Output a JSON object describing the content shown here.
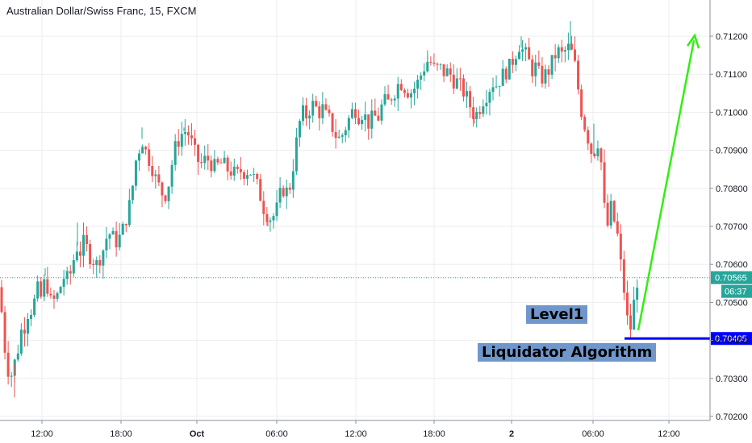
{
  "chart_data": {
    "type": "candlestick",
    "title": "Australian Dollar/Swiss Franc, 15, FXCM",
    "x_ticks": [
      "12:00",
      "18:00",
      "Oct",
      "06:00",
      "12:00",
      "18:00",
      "2",
      "06:00",
      "12:00"
    ],
    "y_ticks": [
      0.712,
      0.711,
      0.71,
      0.709,
      0.708,
      0.707,
      0.706,
      0.705,
      0.704,
      0.703,
      0.702
    ],
    "y_tick_labels": [
      "0.71200",
      "0.71100",
      "0.71000",
      "0.70900",
      "0.70800",
      "0.70700",
      "0.70600",
      "0.70500",
      "0.70400",
      "0.70300",
      "0.70200"
    ],
    "ylim": [
      0.70184,
      0.71277
    ],
    "current_price": "0.70565",
    "countdown": "06:37",
    "level_price": "0.70405",
    "annotations": [
      "Level1",
      "Liquidator Algorithm"
    ],
    "colors": {
      "up": "#26a69a",
      "down": "#ef5350",
      "level": "#0000ff",
      "arrow": "#33ee11",
      "price_label": "#26a69a",
      "level_label": "#0000ff"
    },
    "path": [
      [
        0,
        0.7054
      ],
      [
        4,
        0.7041
      ],
      [
        8,
        0.7035
      ],
      [
        12,
        0.703
      ],
      [
        16,
        0.7032
      ],
      [
        20,
        0.7036
      ],
      [
        24,
        0.7039
      ],
      [
        28,
        0.7045
      ],
      [
        32,
        0.7043
      ],
      [
        36,
        0.705
      ],
      [
        40,
        0.7047
      ],
      [
        44,
        0.7052
      ],
      [
        48,
        0.7054
      ],
      [
        52,
        0.705
      ],
      [
        56,
        0.7057
      ],
      [
        60,
        0.7053
      ],
      [
        64,
        0.7049
      ],
      [
        68,
        0.7051
      ],
      [
        72,
        0.7052
      ],
      [
        76,
        0.7055
      ],
      [
        80,
        0.7057
      ],
      [
        84,
        0.7056
      ],
      [
        88,
        0.7058
      ],
      [
        92,
        0.7062
      ],
      [
        96,
        0.7065
      ],
      [
        100,
        0.7063
      ],
      [
        104,
        0.7066
      ],
      [
        108,
        0.7064
      ],
      [
        112,
        0.7062
      ],
      [
        116,
        0.7061
      ],
      [
        120,
        0.706
      ],
      [
        124,
        0.7062
      ],
      [
        128,
        0.7064
      ],
      [
        132,
        0.7067
      ],
      [
        136,
        0.7068
      ],
      [
        140,
        0.7067
      ],
      [
        144,
        0.7066
      ],
      [
        148,
        0.7067
      ],
      [
        152,
        0.7069
      ],
      [
        156,
        0.7072
      ],
      [
        160,
        0.7075
      ],
      [
        164,
        0.708
      ],
      [
        168,
        0.7087
      ],
      [
        172,
        0.709
      ],
      [
        176,
        0.7093
      ],
      [
        180,
        0.709
      ],
      [
        184,
        0.7088
      ],
      [
        188,
        0.7086
      ],
      [
        192,
        0.7083
      ],
      [
        196,
        0.7081
      ],
      [
        200,
        0.7079
      ],
      [
        204,
        0.7078
      ],
      [
        208,
        0.708
      ],
      [
        212,
        0.7085
      ],
      [
        216,
        0.709
      ],
      [
        220,
        0.7092
      ],
      [
        224,
        0.7094
      ],
      [
        228,
        0.7095
      ],
      [
        232,
        0.7095
      ],
      [
        236,
        0.7093
      ],
      [
        240,
        0.709
      ],
      [
        244,
        0.7088
      ],
      [
        248,
        0.7086
      ],
      [
        252,
        0.7087
      ],
      [
        256,
        0.7088
      ],
      [
        260,
        0.7087
      ],
      [
        264,
        0.7086
      ],
      [
        268,
        0.7085
      ],
      [
        272,
        0.7087
      ],
      [
        276,
        0.7086
      ],
      [
        280,
        0.7086
      ],
      [
        284,
        0.7084
      ],
      [
        288,
        0.7085
      ],
      [
        292,
        0.7083
      ],
      [
        296,
        0.7084
      ],
      [
        300,
        0.7085
      ],
      [
        304,
        0.7084
      ],
      [
        308,
        0.7085
      ],
      [
        312,
        0.7084
      ],
      [
        316,
        0.7082
      ],
      [
        320,
        0.708
      ],
      [
        324,
        0.7077
      ],
      [
        328,
        0.7074
      ],
      [
        332,
        0.7073
      ],
      [
        336,
        0.7072
      ],
      [
        340,
        0.7073
      ],
      [
        344,
        0.7075
      ],
      [
        348,
        0.7079
      ],
      [
        352,
        0.708
      ],
      [
        356,
        0.7079
      ],
      [
        360,
        0.7081
      ],
      [
        364,
        0.7087
      ],
      [
        368,
        0.7093
      ],
      [
        372,
        0.7098
      ],
      [
        376,
        0.71
      ],
      [
        380,
        0.7099
      ],
      [
        384,
        0.7101
      ],
      [
        388,
        0.7102
      ],
      [
        392,
        0.7101
      ],
      [
        396,
        0.71
      ],
      [
        400,
        0.7101
      ],
      [
        404,
        0.7099
      ],
      [
        408,
        0.7098
      ],
      [
        412,
        0.7096
      ],
      [
        416,
        0.7094
      ],
      [
        420,
        0.7093
      ],
      [
        424,
        0.7094
      ],
      [
        428,
        0.7096
      ],
      [
        432,
        0.7098
      ],
      [
        436,
        0.71
      ],
      [
        440,
        0.7101
      ],
      [
        444,
        0.7099
      ],
      [
        448,
        0.71
      ],
      [
        452,
        0.7099
      ],
      [
        456,
        0.7097
      ],
      [
        460,
        0.7098
      ],
      [
        464,
        0.7099
      ],
      [
        468,
        0.7098
      ],
      [
        472,
        0.7101
      ],
      [
        476,
        0.7103
      ],
      [
        480,
        0.7102
      ],
      [
        484,
        0.7104
      ],
      [
        488,
        0.7105
      ],
      [
        492,
        0.7107
      ],
      [
        496,
        0.7108
      ],
      [
        500,
        0.7107
      ],
      [
        504,
        0.7106
      ],
      [
        508,
        0.7105
      ],
      [
        512,
        0.7106
      ],
      [
        516,
        0.7107
      ],
      [
        520,
        0.7109
      ],
      [
        524,
        0.7111
      ],
      [
        528,
        0.7113
      ],
      [
        532,
        0.7114
      ],
      [
        536,
        0.7112
      ],
      [
        540,
        0.7111
      ],
      [
        544,
        0.7112
      ],
      [
        548,
        0.7111
      ],
      [
        552,
        0.711
      ],
      [
        556,
        0.7111
      ],
      [
        560,
        0.7109
      ],
      [
        564,
        0.7108
      ],
      [
        568,
        0.7108
      ],
      [
        572,
        0.7106
      ],
      [
        576,
        0.7105
      ],
      [
        580,
        0.7103
      ],
      [
        584,
        0.7101
      ],
      [
        588,
        0.7099
      ],
      [
        592,
        0.71
      ],
      [
        596,
        0.7102
      ],
      [
        600,
        0.7104
      ],
      [
        604,
        0.7105
      ],
      [
        608,
        0.7107
      ],
      [
        612,
        0.7108
      ],
      [
        616,
        0.7107
      ],
      [
        620,
        0.7109
      ],
      [
        624,
        0.711
      ],
      [
        628,
        0.7111
      ],
      [
        632,
        0.7112
      ],
      [
        636,
        0.7114
      ],
      [
        640,
        0.7116
      ],
      [
        644,
        0.7118
      ],
      [
        648,
        0.7116
      ],
      [
        652,
        0.7115
      ],
      [
        656,
        0.7113
      ],
      [
        660,
        0.7111
      ],
      [
        664,
        0.7112
      ],
      [
        668,
        0.711
      ],
      [
        672,
        0.7109
      ],
      [
        676,
        0.711
      ],
      [
        680,
        0.7111
      ],
      [
        684,
        0.7113
      ],
      [
        688,
        0.7115
      ],
      [
        692,
        0.7116
      ],
      [
        696,
        0.7115
      ],
      [
        700,
        0.7116
      ],
      [
        704,
        0.7117
      ],
      [
        708,
        0.7116
      ],
      [
        712,
        0.7113
      ],
      [
        716,
        0.7107
      ],
      [
        720,
        0.7101
      ],
      [
        724,
        0.7097
      ],
      [
        728,
        0.7094
      ],
      [
        732,
        0.709
      ],
      [
        736,
        0.7089
      ],
      [
        740,
        0.7093
      ],
      [
        744,
        0.709
      ],
      [
        748,
        0.7077
      ],
      [
        752,
        0.7068
      ],
      [
        756,
        0.7076
      ],
      [
        760,
        0.7072
      ],
      [
        764,
        0.707
      ],
      [
        768,
        0.7062
      ],
      [
        772,
        0.7056
      ],
      [
        776,
        0.7048
      ],
      [
        780,
        0.7041
      ],
      [
        784,
        0.7047
      ],
      [
        788,
        0.7054
      ],
      [
        790,
        0.7056
      ]
    ],
    "wicks": [
      [
        18,
        0.7025
      ],
      [
        707,
        0.7124
      ],
      [
        228,
        0.7096
      ],
      [
        176,
        0.7096
      ],
      [
        530,
        0.7115
      ],
      [
        646,
        0.712
      ],
      [
        780,
        0.7041
      ],
      [
        96,
        0.7071
      ],
      [
        56,
        0.7059
      ],
      [
        332,
        0.707
      ],
      [
        588,
        0.7097
      ],
      [
        736,
        0.7097
      ]
    ]
  }
}
